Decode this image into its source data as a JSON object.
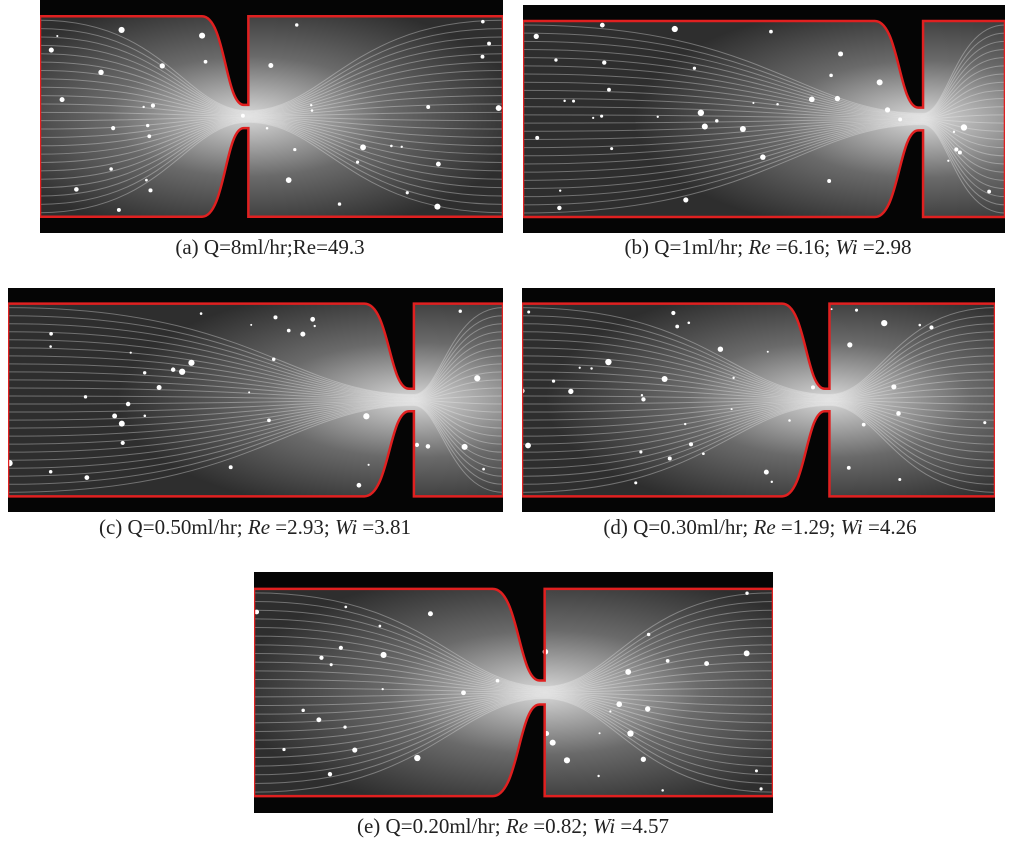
{
  "panels": [
    {
      "label": "(a)",
      "parts": [
        {
          "text": "Q=8ml/hr;Re=49.3"
        }
      ]
    },
    {
      "label": "(b)",
      "parts": [
        {
          "text": "Q=1ml/hr; "
        },
        {
          "text": "Re",
          "italic": true
        },
        {
          "text": " =6.16; "
        },
        {
          "text": "Wi",
          "italic": true
        },
        {
          "text": " =2.98"
        }
      ]
    },
    {
      "label": "(c)",
      "parts": [
        {
          "text": "Q=0.50ml/hr; "
        },
        {
          "text": "Re",
          "italic": true
        },
        {
          "text": " =2.93; "
        },
        {
          "text": "Wi",
          "italic": true
        },
        {
          "text": " =3.81"
        }
      ]
    },
    {
      "label": "(d)",
      "parts": [
        {
          "text": "Q=0.30ml/hr; "
        },
        {
          "text": "Re",
          "italic": true
        },
        {
          "text": " =1.29; "
        },
        {
          "text": "Wi",
          "italic": true
        },
        {
          "text": " =4.26"
        }
      ]
    },
    {
      "label": "(e)",
      "parts": [
        {
          "text": "Q=0.20ml/hr; "
        },
        {
          "text": "Re",
          "italic": true
        },
        {
          "text": " =0.82; "
        },
        {
          "text": "Wi",
          "italic": true
        },
        {
          "text": " =4.57"
        }
      ]
    }
  ]
}
